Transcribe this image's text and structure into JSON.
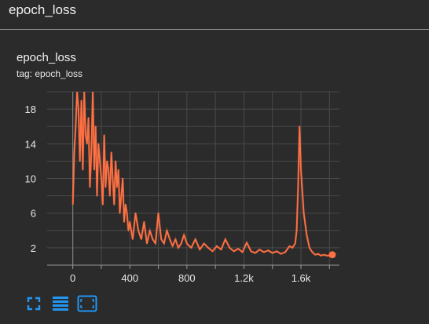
{
  "header": {
    "title": "epoch_loss"
  },
  "card": {
    "title": "epoch_loss",
    "tag_label": "tag: epoch_loss"
  },
  "toolbar": {
    "icons": [
      "fullscreen-icon",
      "toggle-log-scale-icon",
      "fit-domain-icon"
    ]
  },
  "colors": {
    "accent": "#ff7043",
    "icon": "#2196f3",
    "grid": "#4a4a4a",
    "background": "#2b2b2b"
  },
  "chart_data": {
    "type": "line",
    "xlabel": "",
    "ylabel": "",
    "xlim": [
      -180,
      1870
    ],
    "ylim": [
      0,
      20
    ],
    "x_ticks": [
      0,
      400,
      800,
      1200,
      1600
    ],
    "x_tick_labels": [
      "0",
      "400",
      "800",
      "1.2k",
      "1.6k"
    ],
    "y_ticks": [
      2,
      6,
      10,
      14,
      18
    ],
    "y_tick_labels": [
      "2",
      "6",
      "10",
      "14",
      "18"
    ],
    "grid": true,
    "series": [
      {
        "name": "",
        "color": "#ff7043",
        "x": [
          0,
          10,
          20,
          30,
          40,
          50,
          60,
          70,
          80,
          90,
          100,
          110,
          120,
          130,
          140,
          150,
          160,
          170,
          180,
          190,
          200,
          210,
          220,
          230,
          240,
          250,
          260,
          270,
          280,
          290,
          300,
          310,
          320,
          330,
          340,
          350,
          360,
          370,
          380,
          390,
          400,
          420,
          440,
          460,
          480,
          500,
          520,
          540,
          560,
          580,
          600,
          620,
          640,
          660,
          680,
          700,
          720,
          740,
          760,
          780,
          800,
          830,
          860,
          890,
          920,
          950,
          980,
          1010,
          1040,
          1070,
          1100,
          1130,
          1160,
          1190,
          1220,
          1250,
          1280,
          1310,
          1340,
          1370,
          1400,
          1430,
          1460,
          1490,
          1520,
          1540,
          1560,
          1570,
          1580,
          1590,
          1600,
          1620,
          1640,
          1660,
          1680,
          1700,
          1720,
          1740,
          1760,
          1780,
          1800,
          1820
        ],
        "y": [
          7,
          13,
          16,
          20,
          18,
          12,
          19,
          11,
          20,
          15,
          14,
          17,
          9,
          13,
          20,
          11,
          16,
          8,
          14,
          12,
          10,
          7,
          15,
          9,
          12,
          11,
          8,
          13,
          10,
          7,
          12,
          9,
          11,
          6,
          8,
          10,
          5,
          7,
          6,
          4,
          5,
          3,
          6,
          4,
          3,
          5,
          2.5,
          4,
          3,
          2.5,
          6,
          3,
          2.5,
          4,
          3,
          2.2,
          3,
          2,
          2.5,
          3.5,
          2.5,
          2,
          3,
          1.8,
          2.5,
          2,
          1.6,
          2.2,
          1.8,
          3,
          2,
          1.6,
          1.9,
          1.5,
          2.6,
          1.6,
          1.4,
          1.8,
          1.5,
          1.7,
          1.4,
          1.6,
          1.3,
          1.5,
          2.2,
          2.0,
          2.5,
          4,
          9,
          16,
          11,
          6,
          3.5,
          2,
          1.5,
          1.2,
          1.3,
          1.1,
          1.2,
          1.1,
          1.1,
          1.2
        ]
      }
    ]
  }
}
